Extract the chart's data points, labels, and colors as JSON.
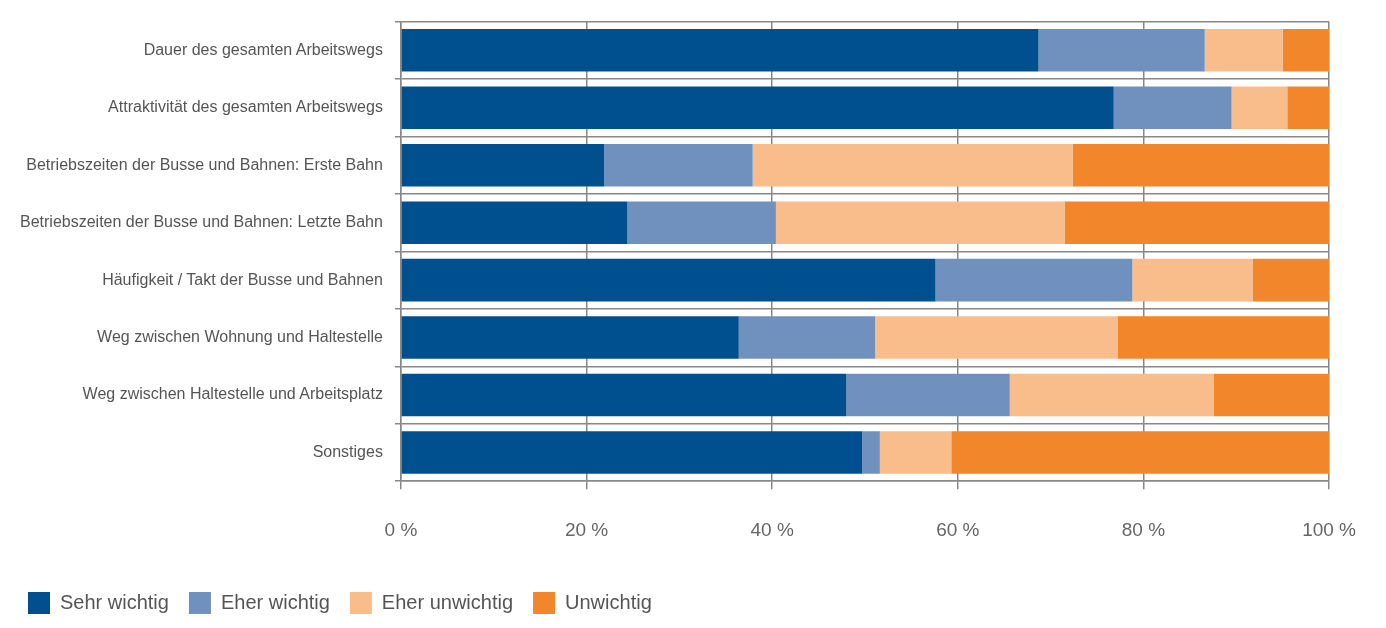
{
  "chart_data": {
    "type": "bar",
    "orientation": "horizontal",
    "stacked": true,
    "categories": [
      "Dauer des gesamten Arbeitswegs",
      "Attraktivität des gesamten Arbeitswegs",
      "Betriebszeiten der Busse und Bahnen: Erste Bahn",
      "Betriebszeiten der Busse und Bahnen: Letzte Bahn",
      "Häufigkeit / Takt der Busse und Bahnen",
      "Weg zwischen Wohnung und Haltestelle",
      "Weg zwischen Haltestelle und Arbeitsplatz",
      "Sonstiges"
    ],
    "series": [
      {
        "name": "Sehr wichtig",
        "color": "#00508f",
        "values": [
          68.7,
          76.8,
          21.9,
          24.4,
          57.6,
          36.4,
          48.0,
          49.7
        ]
      },
      {
        "name": "Eher wichtig",
        "color": "#7090bd",
        "values": [
          17.9,
          12.7,
          16.0,
          16.0,
          21.2,
          14.7,
          17.6,
          1.9
        ]
      },
      {
        "name": "Eher unwichtig",
        "color": "#f9bc8b",
        "values": [
          8.4,
          6.0,
          34.5,
          31.1,
          13.0,
          26.1,
          22.0,
          7.7
        ]
      },
      {
        "name": "Unwichtig",
        "color": "#f2862b",
        "values": [
          5.0,
          4.5,
          27.6,
          28.5,
          8.2,
          22.8,
          12.4,
          40.7
        ]
      }
    ],
    "xlim": [
      0,
      100
    ],
    "xticks": [
      {
        "value": 0,
        "label": "0 %"
      },
      {
        "value": 20,
        "label": "20 %"
      },
      {
        "value": 40,
        "label": "40 %"
      },
      {
        "value": 60,
        "label": "60 %"
      },
      {
        "value": 80,
        "label": "80 %"
      },
      {
        "value": 100,
        "label": "100 %"
      }
    ],
    "grid": true,
    "legend": "bottom left"
  }
}
